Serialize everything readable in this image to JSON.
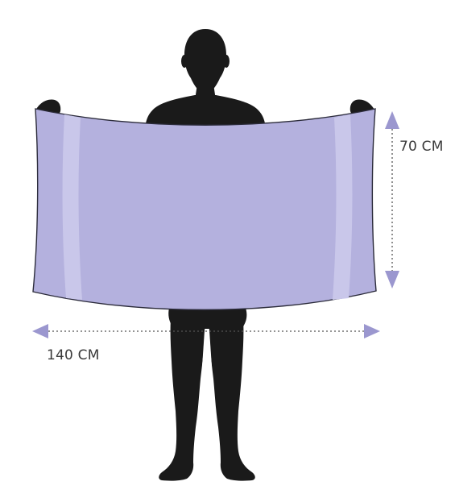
{
  "diagram": {
    "subject": "person-holding-towel",
    "height_dimension": {
      "label": "70 CM",
      "value": 70,
      "unit": "CM"
    },
    "width_dimension": {
      "label": "140 CM",
      "value": 140,
      "unit": "CM"
    }
  },
  "colors": {
    "silhouette": "#1a1a1a",
    "towel": "#b4b1de",
    "towel_stripe": "#c9c7ea",
    "towel_outline": "#2b2b3a",
    "arrow": "#9b97cf",
    "dotted_line": "#555555",
    "text": "#3a3a3a"
  }
}
